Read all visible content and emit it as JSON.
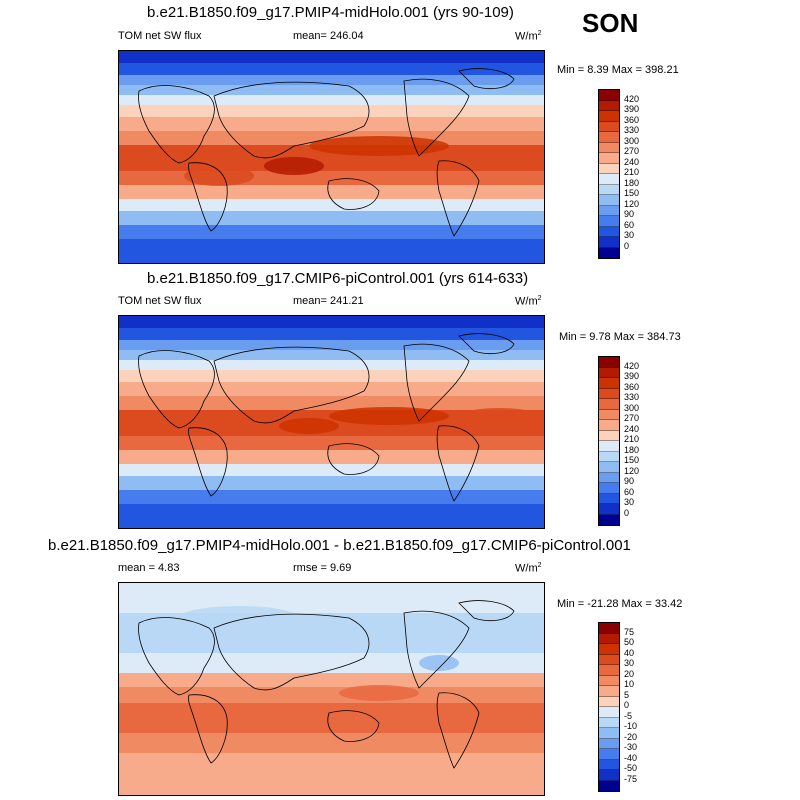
{
  "season": "SON",
  "panels": [
    {
      "title": "b.e21.B1850.f09_g17.PMIP4-midHolo.001 (yrs 90-109)",
      "left_label": "TOM net SW flux",
      "center_label": "mean= 246.04",
      "units_base": "W/m",
      "units_exp": "2",
      "minmax": "Min =   8.39 Max = 398.21",
      "colorbar": [
        "420",
        "390",
        "360",
        "330",
        "300",
        "270",
        "240",
        "210",
        "180",
        "150",
        "120",
        "90",
        "60",
        "30",
        "0"
      ],
      "colors": [
        "#8b0000",
        "#b31b00",
        "#cc3300",
        "#dc4a1f",
        "#e8693f",
        "#f08a63",
        "#f7ab8a",
        "#fbd2bc",
        "#dcebf7",
        "#b8d8f5",
        "#8fbcf2",
        "#6a9cf0",
        "#467ced",
        "#2256e0",
        "#1030c8",
        "#000090"
      ]
    },
    {
      "title": "b.e21.B1850.f09_g17.CMIP6-piControl.001 (yrs 614-633)",
      "left_label": "TOM net SW flux",
      "center_label": "mean= 241.21",
      "units_base": "W/m",
      "units_exp": "2",
      "minmax": "Min =   9.78 Max = 384.73",
      "colorbar": [
        "420",
        "390",
        "360",
        "330",
        "300",
        "270",
        "240",
        "210",
        "180",
        "150",
        "120",
        "90",
        "60",
        "30",
        "0"
      ],
      "colors": [
        "#8b0000",
        "#b31b00",
        "#cc3300",
        "#dc4a1f",
        "#e8693f",
        "#f08a63",
        "#f7ab8a",
        "#fbd2bc",
        "#dcebf7",
        "#b8d8f5",
        "#8fbcf2",
        "#6a9cf0",
        "#467ced",
        "#2256e0",
        "#1030c8",
        "#000090"
      ]
    },
    {
      "title": "b.e21.B1850.f09_g17.PMIP4-midHolo.001 - b.e21.B1850.f09_g17.CMIP6-piControl.001",
      "left_label": "mean =   4.83",
      "center_label": "rmse =   9.69",
      "units_base": "W/m",
      "units_exp": "2",
      "minmax": "Min = -21.28 Max =  33.42",
      "colorbar": [
        "75",
        "50",
        "40",
        "30",
        "20",
        "10",
        "5",
        "0",
        "-5",
        "-10",
        "-20",
        "-30",
        "-40",
        "-50",
        "-75"
      ],
      "colors": [
        "#8b0000",
        "#b31b00",
        "#cc3300",
        "#dc4a1f",
        "#e8693f",
        "#f08a63",
        "#f7ab8a",
        "#fbd2bc",
        "#dcebf7",
        "#b8d8f5",
        "#8fbcf2",
        "#6a9cf0",
        "#467ced",
        "#2256e0",
        "#1030c8",
        "#000090"
      ]
    }
  ]
}
